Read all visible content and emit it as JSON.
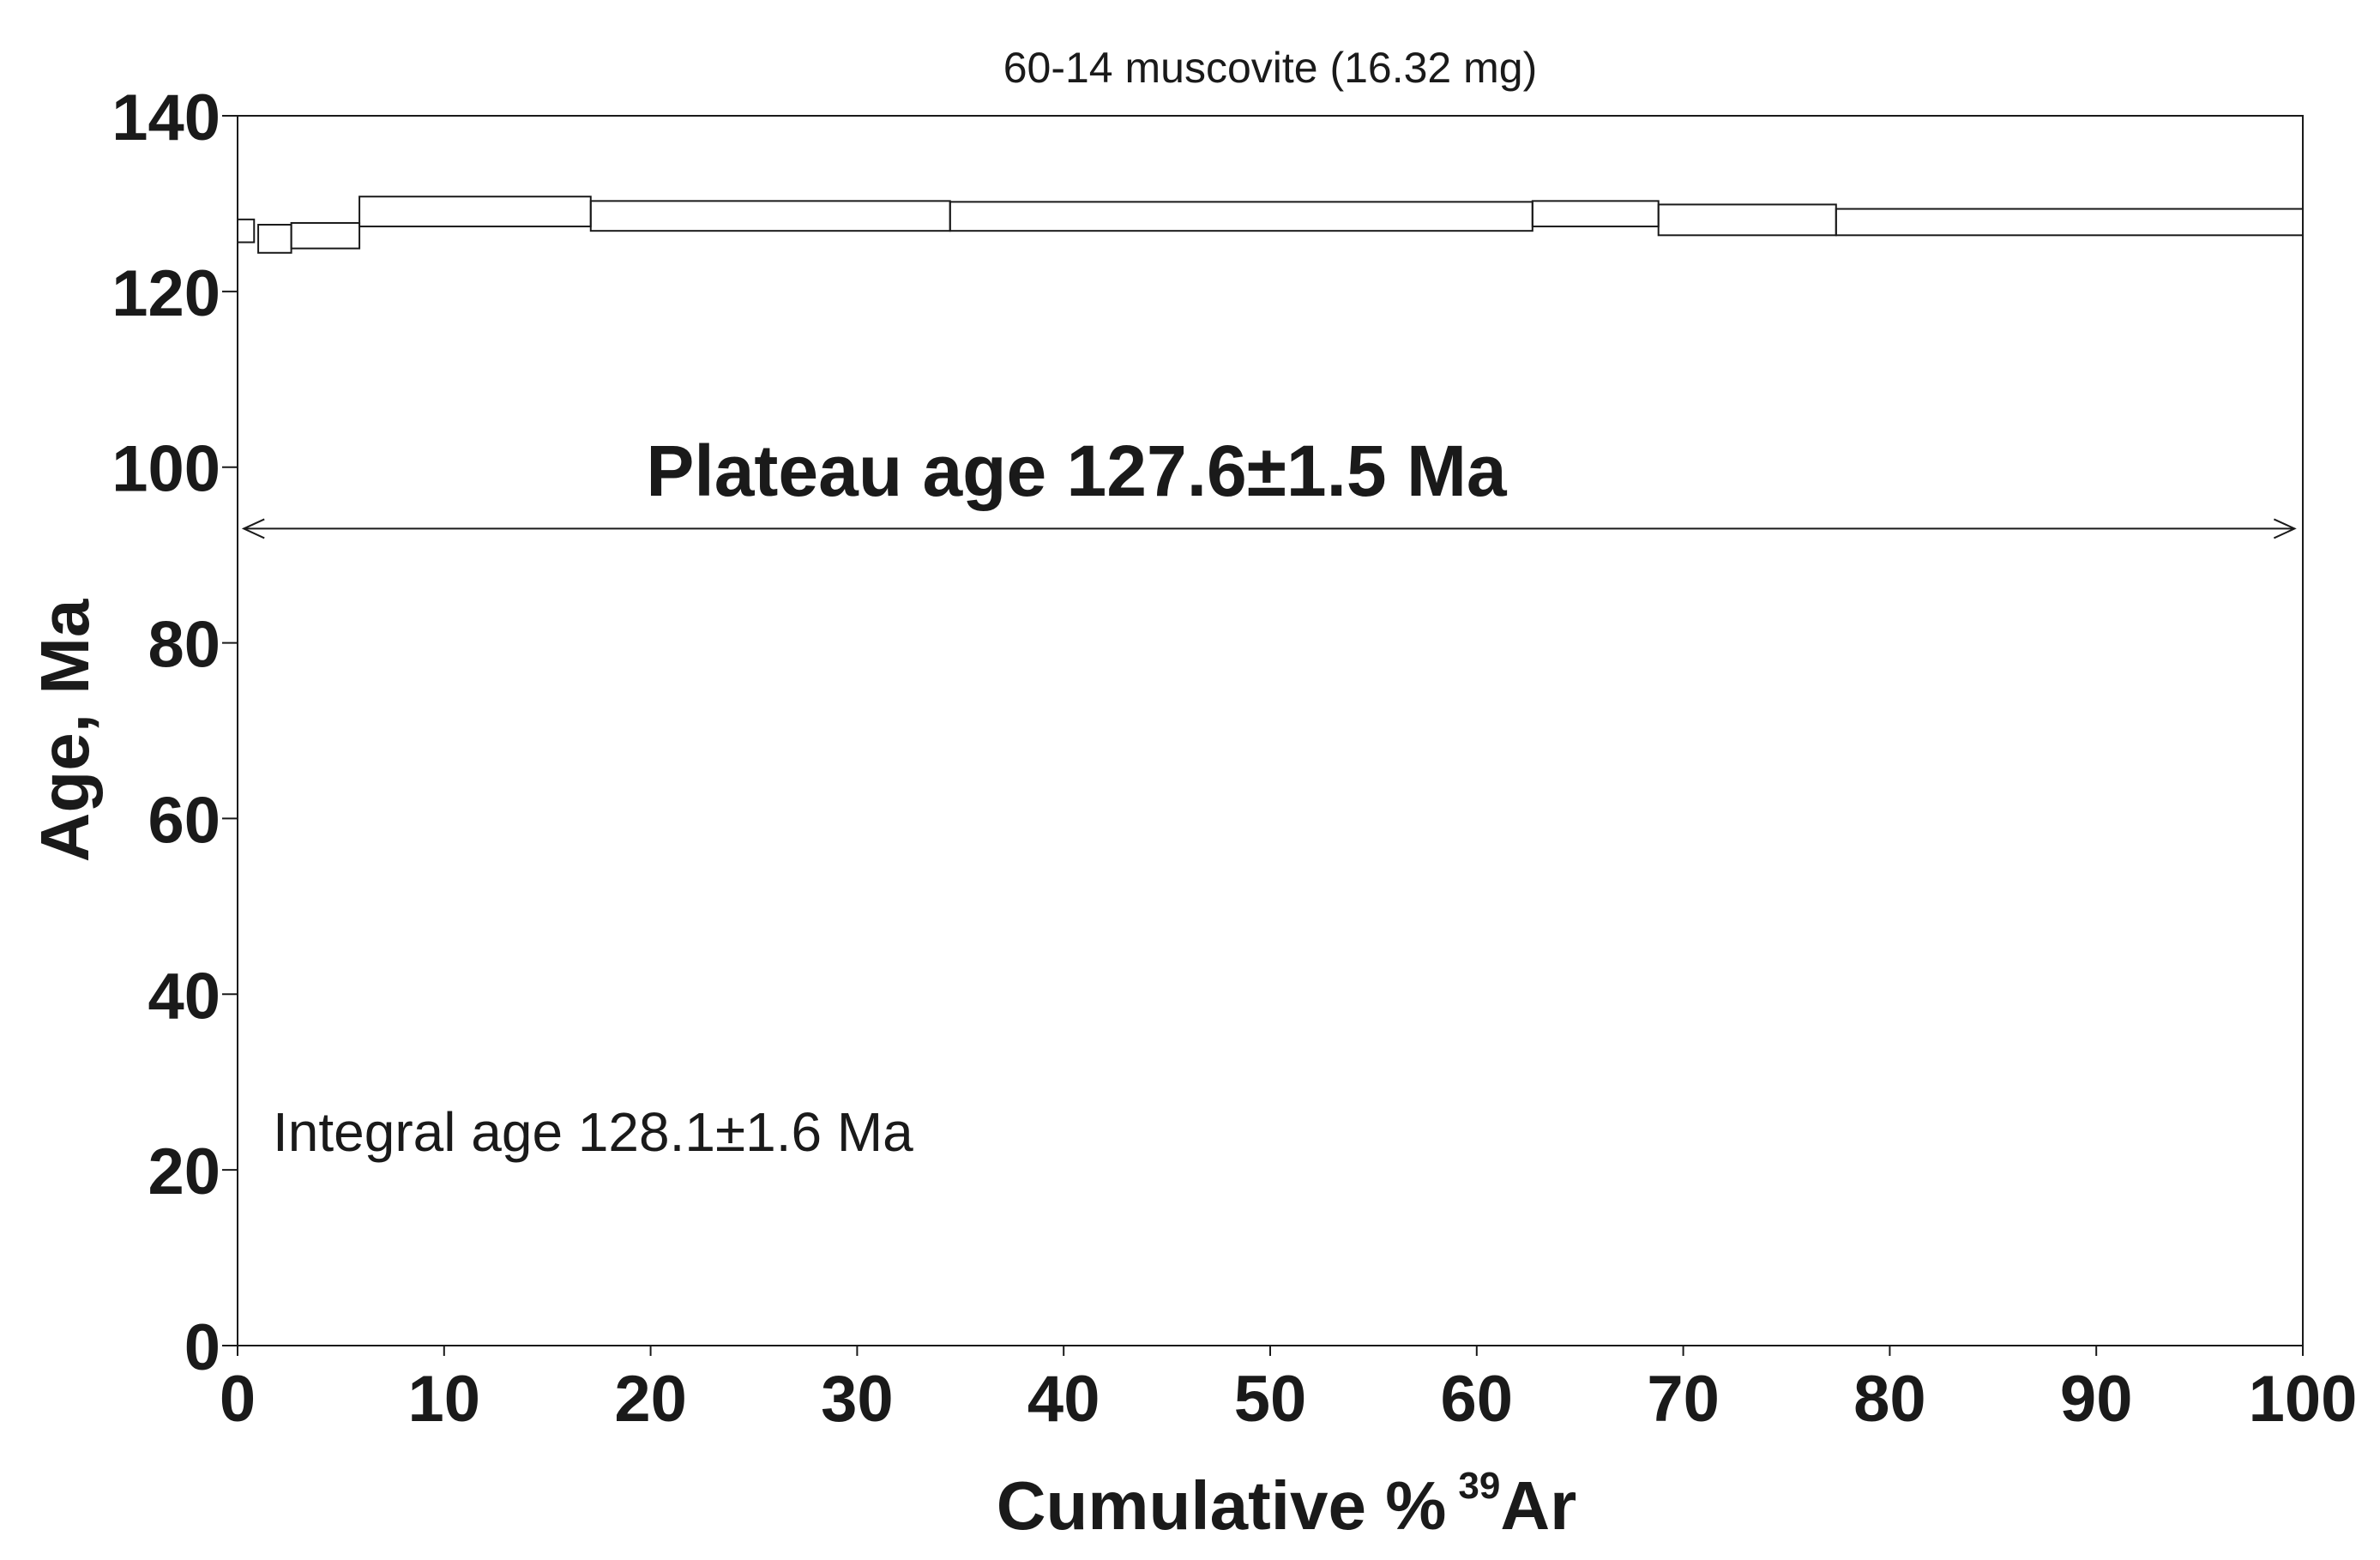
{
  "chart_data": {
    "type": "step",
    "title": "60-14 muscovite (16.32 mg)",
    "xlabel": "Cumulative %",
    "xlabel_sup": "39",
    "xlabel_suffix": "Ar",
    "ylabel": "Age, Ma",
    "xlim": [
      0,
      100
    ],
    "ylim": [
      0,
      140
    ],
    "xticks": [
      0,
      10,
      20,
      30,
      40,
      50,
      60,
      70,
      80,
      90,
      100
    ],
    "yticks": [
      0,
      20,
      40,
      60,
      80,
      100,
      120,
      140
    ],
    "steps": [
      {
        "x0": 0.0,
        "x1": 0.8,
        "age_min": 125.6,
        "age_max": 128.2
      },
      {
        "x0": 1.0,
        "x1": 2.6,
        "age_min": 124.4,
        "age_max": 127.6
      },
      {
        "x0": 2.6,
        "x1": 5.9,
        "age_min": 124.9,
        "age_max": 127.8
      },
      {
        "x0": 5.9,
        "x1": 17.1,
        "age_min": 127.4,
        "age_max": 130.8
      },
      {
        "x0": 17.1,
        "x1": 34.5,
        "age_min": 126.9,
        "age_max": 130.3
      },
      {
        "x0": 34.5,
        "x1": 62.7,
        "age_min": 126.9,
        "age_max": 130.2
      },
      {
        "x0": 62.7,
        "x1": 68.8,
        "age_min": 127.4,
        "age_max": 130.3
      },
      {
        "x0": 68.8,
        "x1": 77.4,
        "age_min": 126.4,
        "age_max": 129.9
      },
      {
        "x0": 77.4,
        "x1": 100.0,
        "age_min": 126.4,
        "age_max": 129.4
      }
    ],
    "plateau": {
      "label": "Plateau age 127.6±1.5 Ma",
      "x_from": 0.3,
      "x_to": 99.6,
      "arrow_y": 93
    },
    "integral_label": "Integral age 128.1±1.6 Ma",
    "grid": false,
    "line_color": "#1a1a1a"
  }
}
